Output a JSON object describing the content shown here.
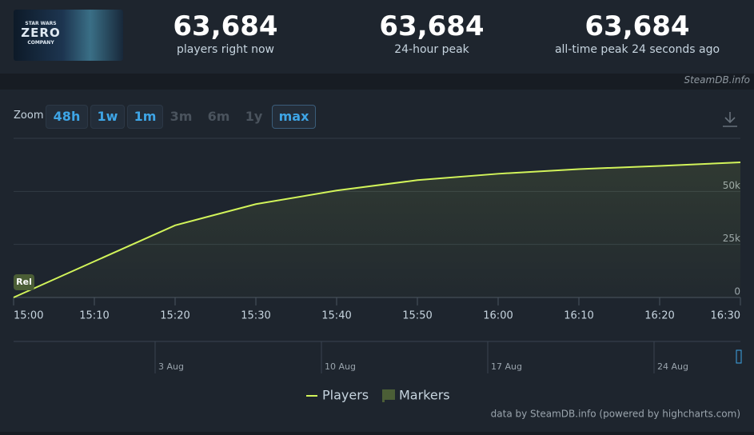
{
  "header": {
    "logo": [
      "STAR WARS",
      "ZERO",
      "COMPANY"
    ],
    "stats": [
      {
        "value": "63,684",
        "label": "players right now"
      },
      {
        "value": "63,684",
        "label": "24-hour peak"
      },
      {
        "value": "63,684",
        "label": "all-time peak 24 seconds ago"
      }
    ],
    "site": "SteamDB.info"
  },
  "zoom": {
    "label": "Zoom",
    "buttons": [
      {
        "text": "48h",
        "enabled": true
      },
      {
        "text": "1w",
        "enabled": true
      },
      {
        "text": "1m",
        "enabled": true
      },
      {
        "text": "3m",
        "enabled": false
      },
      {
        "text": "6m",
        "enabled": false
      },
      {
        "text": "1y",
        "enabled": false
      },
      {
        "text": "max",
        "enabled": true,
        "selected": true
      }
    ]
  },
  "chart_data": {
    "type": "line",
    "categories": [
      "15:00",
      "15:10",
      "15:20",
      "15:30",
      "15:40",
      "15:50",
      "16:00",
      "16:10",
      "16:20",
      "16:30"
    ],
    "series": [
      {
        "name": "Players",
        "color": "#d2f45a",
        "values": [
          0,
          17000,
          34000,
          44000,
          50400,
          55300,
          58300,
          60500,
          62000,
          63684
        ]
      }
    ],
    "markers": {
      "name": "Markers",
      "color": "#4b5e36",
      "labels": [
        "Rel"
      ]
    },
    "ylim": [
      0,
      75000
    ],
    "yticks": [
      0,
      {
        "value": 25000,
        "label": "25k"
      },
      {
        "value": 50000,
        "label": "50k"
      }
    ],
    "grid": true
  },
  "navigator": {
    "dates": [
      "3 Aug",
      "10 Aug",
      "17 Aug",
      "24 Aug"
    ]
  },
  "credit": "data by SteamDB.info (powered by highcharts.com)"
}
